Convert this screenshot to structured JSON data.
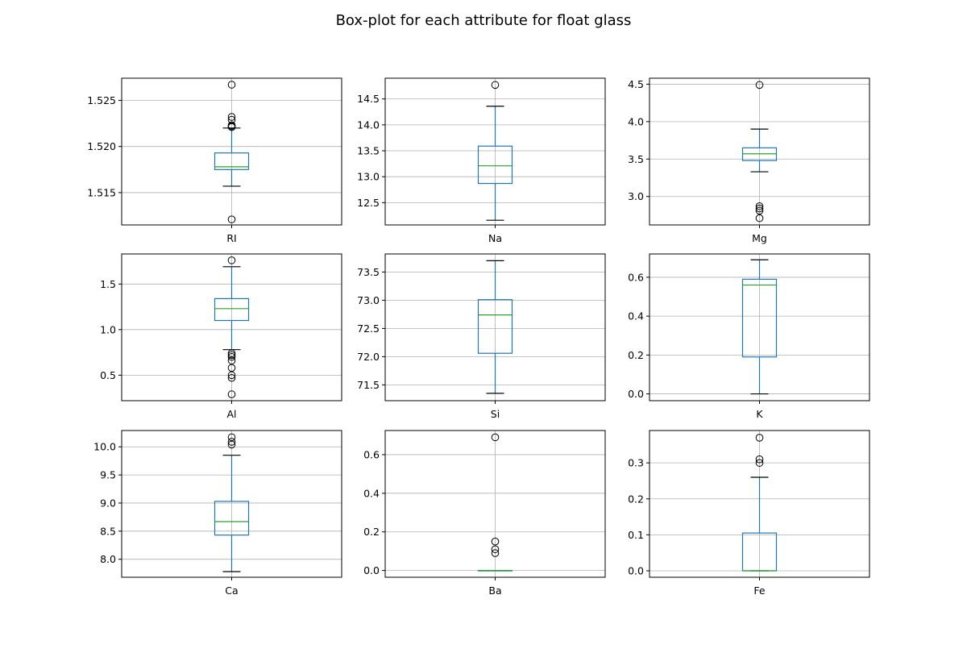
{
  "figure": {
    "title": "Box-plot for each attribute for float glass"
  },
  "chart_data": [
    {
      "type": "box",
      "label": "RI",
      "ylim": [
        1.5115,
        1.5274
      ],
      "ticks": [
        1.515,
        1.52,
        1.525
      ],
      "tick_labels": [
        "1.515",
        "1.520",
        "1.525"
      ],
      "whislo": 1.5157,
      "q1": 1.5175,
      "med": 1.5178,
      "q3": 1.5193,
      "whishi": 1.522,
      "fliers": [
        1.5267,
        1.5232,
        1.5229,
        1.5222,
        1.5221,
        1.5223,
        1.5121
      ]
    },
    {
      "type": "box",
      "label": "Na",
      "ylim": [
        12.07,
        14.9
      ],
      "ticks": [
        12.5,
        13.0,
        13.5,
        14.0,
        14.5
      ],
      "tick_labels": [
        "12.5",
        "13.0",
        "13.5",
        "14.0",
        "14.5"
      ],
      "whislo": 12.16,
      "q1": 12.87,
      "med": 13.21,
      "q3": 13.59,
      "whishi": 14.36,
      "fliers": [
        14.77
      ]
    },
    {
      "type": "box",
      "label": "Mg",
      "ylim": [
        2.62,
        4.58
      ],
      "ticks": [
        3.0,
        3.5,
        4.0,
        4.5
      ],
      "tick_labels": [
        "3.0",
        "3.5",
        "4.0",
        "4.5"
      ],
      "whislo": 3.33,
      "q1": 3.48,
      "med": 3.57,
      "q3": 3.65,
      "whishi": 3.9,
      "fliers": [
        4.49,
        2.87,
        2.84,
        2.81,
        2.71
      ]
    },
    {
      "type": "box",
      "label": "Al",
      "ylim": [
        0.22,
        1.83
      ],
      "ticks": [
        0.5,
        1.0,
        1.5
      ],
      "tick_labels": [
        "0.5",
        "1.0",
        "1.5"
      ],
      "whislo": 0.78,
      "q1": 1.1,
      "med": 1.23,
      "q3": 1.34,
      "whishi": 1.69,
      "fliers": [
        1.76,
        0.74,
        0.72,
        0.7,
        0.66,
        0.58,
        0.5,
        0.47,
        0.29
      ]
    },
    {
      "type": "box",
      "label": "Si",
      "ylim": [
        71.22,
        73.82
      ],
      "ticks": [
        71.5,
        72.0,
        72.5,
        73.0,
        73.5
      ],
      "tick_labels": [
        "71.5",
        "72.0",
        "72.5",
        "73.0",
        "73.5"
      ],
      "whislo": 71.35,
      "q1": 72.06,
      "med": 72.74,
      "q3": 73.01,
      "whishi": 73.7,
      "fliers": []
    },
    {
      "type": "box",
      "label": "K",
      "ylim": [
        -0.035,
        0.72
      ],
      "ticks": [
        0.0,
        0.2,
        0.4,
        0.6
      ],
      "tick_labels": [
        "0.0",
        "0.2",
        "0.4",
        "0.6"
      ],
      "whislo": 0.0,
      "q1": 0.19,
      "med": 0.56,
      "q3": 0.59,
      "whishi": 0.69,
      "fliers": []
    },
    {
      "type": "box",
      "label": "Ca",
      "ylim": [
        7.68,
        10.29
      ],
      "ticks": [
        8.0,
        8.5,
        9.0,
        9.5,
        10.0
      ],
      "tick_labels": [
        "8.0",
        "8.5",
        "9.0",
        "9.5",
        "10.0"
      ],
      "whislo": 7.78,
      "q1": 8.43,
      "med": 8.67,
      "q3": 9.03,
      "whishi": 9.85,
      "fliers": [
        10.17,
        10.09,
        10.04
      ]
    },
    {
      "type": "box",
      "label": "Ba",
      "ylim": [
        -0.035,
        0.725
      ],
      "ticks": [
        0.0,
        0.2,
        0.4,
        0.6
      ],
      "tick_labels": [
        "0.0",
        "0.2",
        "0.4",
        "0.6"
      ],
      "whislo": 0.0,
      "q1": 0.0,
      "med": 0.0,
      "q3": 0.0,
      "whishi": 0.0,
      "fliers": [
        0.69,
        0.15,
        0.11,
        0.09
      ]
    },
    {
      "type": "box",
      "label": "Fe",
      "ylim": [
        -0.018,
        0.39
      ],
      "ticks": [
        0.0,
        0.1,
        0.2,
        0.3
      ],
      "tick_labels": [
        "0.0",
        "0.1",
        "0.2",
        "0.3"
      ],
      "whislo": 0.0,
      "q1": 0.0,
      "med": 0.0,
      "q3": 0.105,
      "whishi": 0.26,
      "fliers": [
        0.37,
        0.31,
        0.3
      ]
    }
  ]
}
